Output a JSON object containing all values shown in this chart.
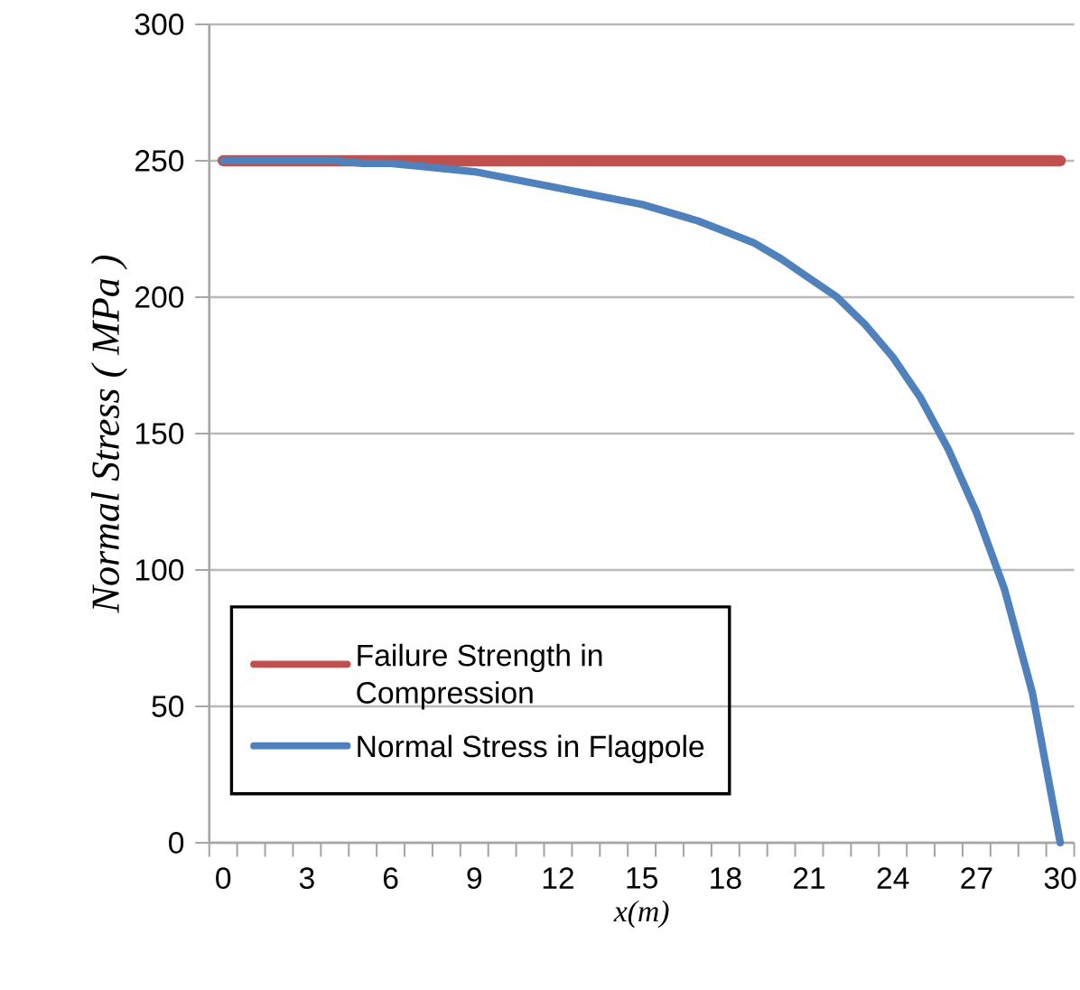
{
  "chart_data": {
    "type": "line",
    "xlabel": "x(m)",
    "ylabel": "Normal Stress ( MPa )",
    "xlim": [
      -0.5,
      30.5
    ],
    "ylim": [
      0,
      300
    ],
    "xticks": [
      0,
      3,
      6,
      9,
      12,
      15,
      18,
      21,
      24,
      27,
      30,
      {
        "value": -0.5,
        "label": null
      },
      {
        "value": 0.5,
        "label": null
      },
      {
        "value": 1.5,
        "label": null
      },
      {
        "value": 2.5,
        "label": null
      },
      {
        "value": 3.5,
        "label": null
      },
      {
        "value": 4.5,
        "label": null
      },
      {
        "value": 5.5,
        "label": null
      },
      {
        "value": 6.5,
        "label": null
      },
      {
        "value": 7.5,
        "label": null
      },
      {
        "value": 8.5,
        "label": null
      },
      {
        "value": 9.5,
        "label": null
      },
      {
        "value": 10.5,
        "label": null
      },
      {
        "value": 11.5,
        "label": null
      },
      {
        "value": 12.5,
        "label": null
      },
      {
        "value": 13.5,
        "label": null
      },
      {
        "value": 14.5,
        "label": null
      },
      {
        "value": 15.5,
        "label": null
      },
      {
        "value": 16.5,
        "label": null
      },
      {
        "value": 17.5,
        "label": null
      },
      {
        "value": 18.5,
        "label": null
      },
      {
        "value": 19.5,
        "label": null
      },
      {
        "value": 20.5,
        "label": null
      },
      {
        "value": 21.5,
        "label": null
      },
      {
        "value": 22.5,
        "label": null
      },
      {
        "value": 23.5,
        "label": null
      },
      {
        "value": 24.5,
        "label": null
      },
      {
        "value": 25.5,
        "label": null
      },
      {
        "value": 26.5,
        "label": null
      },
      {
        "value": 27.5,
        "label": null
      },
      {
        "value": 28.5,
        "label": null
      },
      {
        "value": 29.5,
        "label": null
      },
      {
        "value": 30.5,
        "label": null
      }
    ],
    "yticks": [
      0,
      50,
      100,
      150,
      200,
      250,
      300
    ],
    "grid": "y",
    "legend": "bottom left",
    "marker": "none",
    "line_style": "solid",
    "series": [
      {
        "name": "Failure Strength in Compression",
        "color": "#c0504d",
        "x": [
          0,
          30
        ],
        "values": [
          250,
          250
        ]
      },
      {
        "name": "Normal Stress in Flagpole",
        "color": "#4f81bd",
        "x": [
          0,
          1,
          2,
          3,
          4,
          5,
          6,
          7,
          8,
          9,
          10,
          11,
          12,
          13,
          14,
          15,
          16,
          17,
          18,
          19,
          20,
          21,
          22,
          23,
          24,
          25,
          26,
          27,
          28,
          29,
          30
        ],
        "values": [
          250,
          250,
          250,
          250,
          250,
          249,
          249,
          248,
          247,
          246,
          244,
          242,
          240,
          238,
          236,
          234,
          231,
          228,
          224,
          220,
          214,
          207,
          200,
          190,
          178,
          163,
          144,
          121,
          93,
          55,
          0
        ]
      }
    ]
  }
}
